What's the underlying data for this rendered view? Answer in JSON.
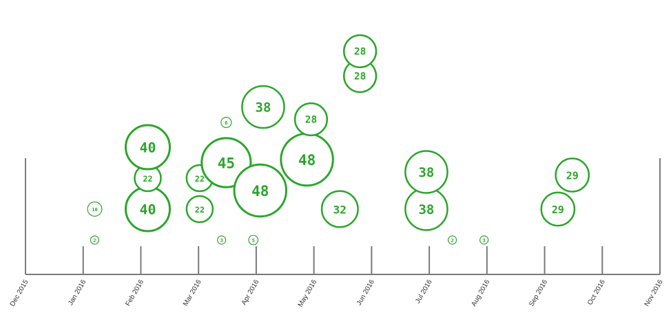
{
  "chart_data": {
    "type": "scatter",
    "title": "",
    "xlabel": "",
    "ylabel": "",
    "grid": false,
    "legend": "none",
    "accent_color": "#2aa62a",
    "axis_color": "#7a7a7a",
    "x_ticks": [
      "Dec 2015",
      "Jan 2016",
      "Feb 2016",
      "Mar 2016",
      "Apr 2016",
      "May 2016",
      "Jun 2016",
      "Jul 2016",
      "Aug 2016",
      "Sep 2016",
      "Oct 2016",
      "Nov 2016"
    ],
    "xlim": [
      0,
      11
    ],
    "points": [
      {
        "month": 1.2,
        "level": 0,
        "value": "2"
      },
      {
        "month": 1.2,
        "level": 1,
        "value": "10"
      },
      {
        "month": 2.12,
        "level": 1,
        "value": "40"
      },
      {
        "month": 2.12,
        "level": 2,
        "value": "22"
      },
      {
        "month": 2.12,
        "level": 3,
        "value": "40"
      },
      {
        "month": 3.02,
        "level": 1,
        "value": "22"
      },
      {
        "month": 3.02,
        "level": 2,
        "value": "22"
      },
      {
        "month": 3.4,
        "level": 0,
        "value": "3"
      },
      {
        "month": 3.48,
        "level": 2.5,
        "value": "45"
      },
      {
        "month": 3.48,
        "level": 3.8,
        "value": "6"
      },
      {
        "month": 3.95,
        "level": 0,
        "value": "5"
      },
      {
        "month": 4.07,
        "level": 1.6,
        "value": "48"
      },
      {
        "month": 4.12,
        "level": 4.3,
        "value": "38"
      },
      {
        "month": 4.88,
        "level": 2.6,
        "value": "48"
      },
      {
        "month": 4.95,
        "level": 3.9,
        "value": "28"
      },
      {
        "month": 5.45,
        "level": 1,
        "value": "32"
      },
      {
        "month": 5.8,
        "level": 5.3,
        "value": "28"
      },
      {
        "month": 5.8,
        "level": 6.1,
        "value": "28"
      },
      {
        "month": 6.95,
        "level": 1,
        "value": "38"
      },
      {
        "month": 6.95,
        "level": 2.2,
        "value": "38"
      },
      {
        "month": 7.4,
        "level": 0,
        "value": "2"
      },
      {
        "month": 7.95,
        "level": 0,
        "value": "3"
      },
      {
        "month": 9.23,
        "level": 1,
        "value": "29"
      },
      {
        "month": 9.48,
        "level": 2.1,
        "value": "29"
      }
    ]
  }
}
